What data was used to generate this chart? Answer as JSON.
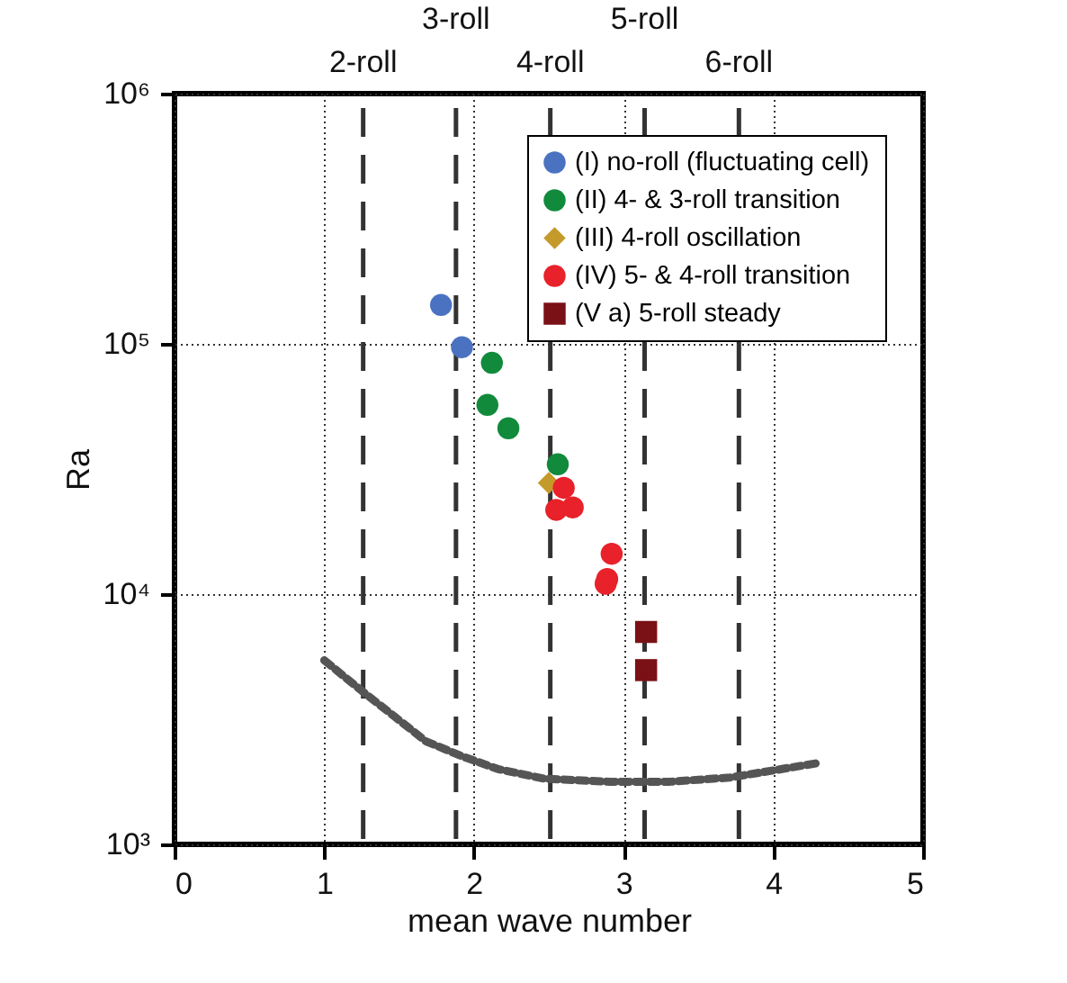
{
  "chart_data": {
    "type": "scatter",
    "xlabel": "mean wave number",
    "ylabel": "Ra",
    "log": "y",
    "grid": true,
    "legend": "top right",
    "xlim": [
      0,
      5
    ],
    "xticks": [
      0,
      1,
      2,
      3,
      4,
      5
    ],
    "ylim": [
      1000,
      1000000
    ],
    "yticks": [
      {
        "value": 1000,
        "label": "10³"
      },
      {
        "value": 10000,
        "label": "10⁴"
      },
      {
        "value": 100000,
        "label": "10⁵"
      },
      {
        "value": 1000000,
        "label": "10⁶"
      }
    ],
    "series": [
      {
        "name": "(I) no-roll (fluctuating cell)",
        "color": "#4a72c0",
        "marker": "circle",
        "x": [
          1.78,
          1.92
        ],
        "values": [
          143000,
          97000
        ]
      },
      {
        "name": "(II) 4- & 3-roll transition",
        "color": "#118a3c",
        "marker": "circle",
        "x": [
          2.12,
          2.09,
          2.23,
          2.56
        ],
        "values": [
          84000,
          57000,
          46000,
          33000
        ]
      },
      {
        "name": "(III) 4-roll oscillation",
        "color": "#c49a2a",
        "marker": "diamond",
        "x": [
          2.5
        ],
        "values": [
          27800
        ]
      },
      {
        "name": "(IV) 5- & 4-roll transition",
        "color": "#e8212a",
        "marker": "circle",
        "x": [
          2.6,
          2.55,
          2.66,
          2.92,
          2.89,
          2.88
        ],
        "values": [
          26600,
          21700,
          22200,
          14500,
          11500,
          11000
        ]
      },
      {
        "name": "(V a) 5-roll steady",
        "color": "#7a1116",
        "marker": "square",
        "x": [
          3.15,
          3.15
        ],
        "values": [
          7060,
          4970
        ]
      },
      {
        "type": "line",
        "color": "#555555",
        "marker": "none",
        "line_style": "dashed",
        "x": [
          1.0,
          1.27,
          1.47,
          1.68,
          1.92,
          2.16,
          2.47,
          2.91,
          3.31,
          3.71,
          3.99,
          4.29
        ],
        "values": [
          5440,
          4020,
          3240,
          2580,
          2250,
          2000,
          1830,
          1780,
          1780,
          1850,
          1970,
          2110
        ]
      }
    ],
    "ref_lines": [
      {
        "axis": "x",
        "value": 1.26,
        "label": "2-roll",
        "line_style": "dashed",
        "color": "#333333"
      },
      {
        "axis": "x",
        "value": 1.88,
        "label": "3-roll",
        "line_style": "dashed",
        "color": "#333333"
      },
      {
        "axis": "x",
        "value": 2.51,
        "label": "4-roll",
        "line_style": "dashed",
        "color": "#333333"
      },
      {
        "axis": "x",
        "value": 3.14,
        "label": "5-roll",
        "line_style": "dashed",
        "color": "#333333"
      },
      {
        "axis": "x",
        "value": 3.77,
        "label": "6-roll",
        "line_style": "dashed",
        "color": "#333333"
      }
    ]
  }
}
